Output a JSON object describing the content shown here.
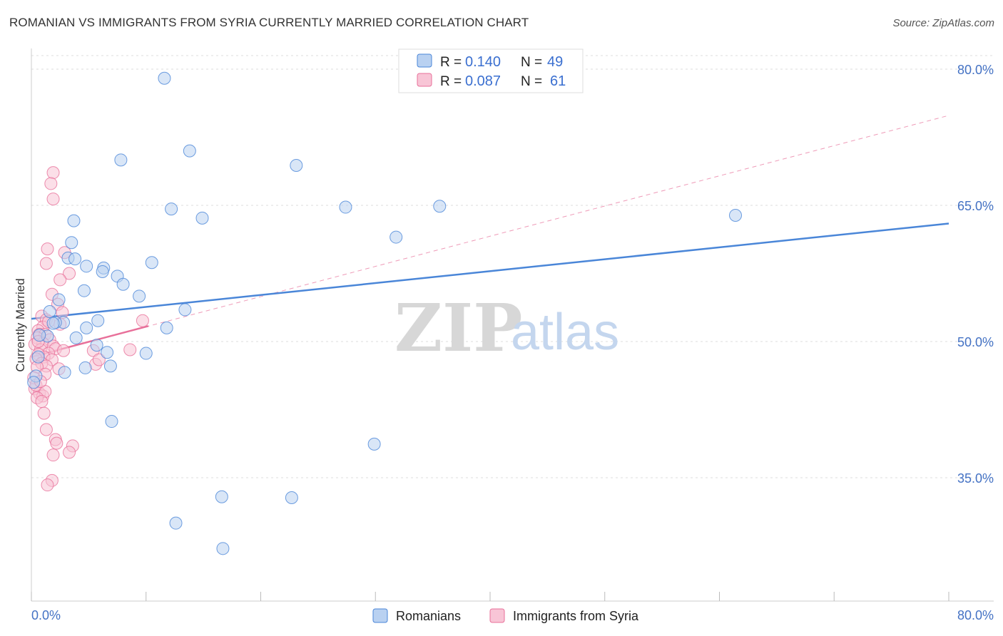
{
  "title": "ROMANIAN VS IMMIGRANTS FROM SYRIA CURRENTLY MARRIED CORRELATION CHART",
  "source": "Source: ZipAtlas.com",
  "watermark": {
    "zip": "ZIP",
    "atlas": "atlas"
  },
  "colors": {
    "blue": "#4a86d8",
    "blue_fill": "#b9d1f1",
    "pink": "#e8709a",
    "pink_fill": "#f8c5d6",
    "axis_text": "#4472c4",
    "grid": "#dddddd"
  },
  "legend": {
    "r_label": "R =",
    "n_label": "N =",
    "entries": [
      {
        "r": "0.140",
        "n": "49"
      },
      {
        "r": "0.087",
        "n": "61"
      }
    ]
  },
  "chart_data": {
    "type": "scatter",
    "title": "ROMANIAN VS IMMIGRANTS FROM SYRIA CURRENTLY MARRIED CORRELATION CHART",
    "xlabel": "",
    "ylabel": "Currently Married",
    "xlim": [
      0,
      80
    ],
    "ylim": [
      20,
      85
    ],
    "x_tick_labels": [
      "0.0%",
      "80.0%"
    ],
    "y_ticks": [
      35,
      50,
      65,
      80
    ],
    "y_tick_labels": [
      "35.0%",
      "50.0%",
      "65.0%",
      "80.0%"
    ],
    "grid": true,
    "legend_position": "top-center",
    "series": [
      {
        "name": "Romanians",
        "color": "#4a86d8",
        "r": 0.14,
        "n": 49,
        "trend": {
          "x": [
            0,
            80
          ],
          "y": [
            52.5,
            63.0
          ]
        },
        "points": [
          [
            11.6,
            79.0
          ],
          [
            7.8,
            70.0
          ],
          [
            13.8,
            71.0
          ],
          [
            23.1,
            69.4
          ],
          [
            12.2,
            64.6
          ],
          [
            14.9,
            63.6
          ],
          [
            27.4,
            64.8
          ],
          [
            35.6,
            64.9
          ],
          [
            31.8,
            61.5
          ],
          [
            61.4,
            63.9
          ],
          [
            3.7,
            63.3
          ],
          [
            3.5,
            60.9
          ],
          [
            3.2,
            59.2
          ],
          [
            3.8,
            59.1
          ],
          [
            4.8,
            58.3
          ],
          [
            6.3,
            58.1
          ],
          [
            6.2,
            57.7
          ],
          [
            7.5,
            57.2
          ],
          [
            8.0,
            56.3
          ],
          [
            10.5,
            58.7
          ],
          [
            4.6,
            55.6
          ],
          [
            9.4,
            55.0
          ],
          [
            2.4,
            54.6
          ],
          [
            13.4,
            53.5
          ],
          [
            1.6,
            53.3
          ],
          [
            2.8,
            52.1
          ],
          [
            2.1,
            52.1
          ],
          [
            1.9,
            52.0
          ],
          [
            5.8,
            52.3
          ],
          [
            4.8,
            51.5
          ],
          [
            11.8,
            51.5
          ],
          [
            3.9,
            50.4
          ],
          [
            1.4,
            50.6
          ],
          [
            0.7,
            50.7
          ],
          [
            5.7,
            49.6
          ],
          [
            6.6,
            48.8
          ],
          [
            10.0,
            48.7
          ],
          [
            0.6,
            48.3
          ],
          [
            4.7,
            47.1
          ],
          [
            6.9,
            47.3
          ],
          [
            2.9,
            46.6
          ],
          [
            0.4,
            46.2
          ],
          [
            7.0,
            41.2
          ],
          [
            29.9,
            38.7
          ],
          [
            16.6,
            32.9
          ],
          [
            22.7,
            32.8
          ],
          [
            12.6,
            30.0
          ],
          [
            16.7,
            27.2
          ],
          [
            0.2,
            45.5
          ]
        ]
      },
      {
        "name": "Immigrants from Syria",
        "color": "#e8709a",
        "r": 0.087,
        "n": 61,
        "trend": {
          "x": [
            0,
            10.2
          ],
          "y": [
            48.3,
            51.7
          ]
        },
        "trend_extended": {
          "x": [
            0,
            80
          ],
          "y": [
            48.3,
            74.9
          ]
        },
        "points": [
          [
            1.9,
            68.6
          ],
          [
            1.7,
            67.4
          ],
          [
            1.9,
            65.7
          ],
          [
            1.4,
            60.2
          ],
          [
            2.9,
            59.8
          ],
          [
            1.3,
            58.6
          ],
          [
            3.3,
            57.5
          ],
          [
            2.5,
            56.8
          ],
          [
            1.8,
            55.2
          ],
          [
            2.3,
            54.1
          ],
          [
            0.9,
            52.8
          ],
          [
            2.7,
            53.2
          ],
          [
            1.3,
            52.4
          ],
          [
            1.0,
            51.6
          ],
          [
            2.5,
            51.9
          ],
          [
            0.6,
            51.2
          ],
          [
            0.7,
            50.8
          ],
          [
            1.2,
            50.8
          ],
          [
            0.5,
            50.4
          ],
          [
            1.6,
            50.2
          ],
          [
            1.0,
            49.8
          ],
          [
            1.9,
            49.5
          ],
          [
            0.3,
            49.7
          ],
          [
            2.1,
            49.2
          ],
          [
            0.8,
            49.1
          ],
          [
            1.5,
            48.7
          ],
          [
            1.1,
            48.3
          ],
          [
            0.6,
            48.6
          ],
          [
            0.4,
            48.1
          ],
          [
            1.8,
            48.0
          ],
          [
            0.9,
            47.6
          ],
          [
            1.3,
            47.3
          ],
          [
            0.5,
            47.2
          ],
          [
            2.4,
            47.0
          ],
          [
            1.2,
            46.4
          ],
          [
            5.4,
            49.0
          ],
          [
            5.6,
            47.5
          ],
          [
            5.9,
            48.0
          ],
          [
            8.6,
            49.1
          ],
          [
            9.7,
            52.3
          ],
          [
            0.3,
            44.8
          ],
          [
            0.7,
            44.3
          ],
          [
            1.0,
            44.0
          ],
          [
            1.2,
            44.5
          ],
          [
            0.5,
            43.8
          ],
          [
            0.9,
            43.4
          ],
          [
            1.1,
            42.1
          ],
          [
            1.3,
            40.3
          ],
          [
            2.1,
            39.2
          ],
          [
            2.2,
            38.8
          ],
          [
            3.6,
            38.5
          ],
          [
            1.9,
            37.5
          ],
          [
            3.3,
            37.8
          ],
          [
            1.8,
            34.7
          ],
          [
            1.4,
            34.2
          ],
          [
            0.2,
            46.0
          ],
          [
            0.4,
            45.2
          ],
          [
            0.8,
            45.6
          ],
          [
            2.8,
            49.0
          ],
          [
            0.6,
            50.0
          ],
          [
            1.5,
            52.2
          ]
        ]
      }
    ]
  }
}
